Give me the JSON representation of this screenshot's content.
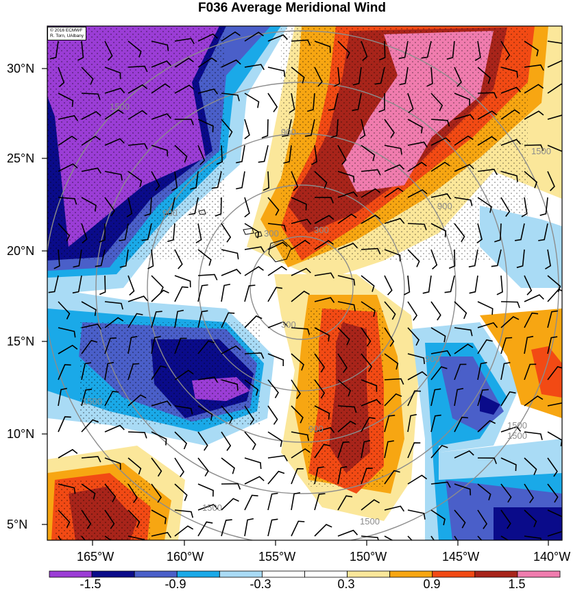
{
  "title": "F036 Average Meridional Wind",
  "credit": {
    "line1": "© 2016 ECMWF",
    "line2": "R. Torn, UAlbany"
  },
  "lat_labels": [
    "30°N",
    "25°N",
    "20°N",
    "15°N",
    "10°N",
    "5°N"
  ],
  "lon_labels": [
    "165°W",
    "160°W",
    "155°W",
    "150°W",
    "145°W",
    "140°W"
  ],
  "colorbar": {
    "colors": [
      "#9b3dd6",
      "#0a0b8a",
      "#4a5fc9",
      "#1aa9e8",
      "#a9dbf5",
      "#ffffff",
      "#ffffff",
      "#fbe79a",
      "#f7a612",
      "#f24a14",
      "#a8241a",
      "#f07cae"
    ],
    "labels": [
      "-1.5",
      "-0.9",
      "-0.3",
      "0.3",
      "0.9",
      "1.5"
    ]
  },
  "contour_labels": [
    "1500",
    "900",
    "300",
    "900",
    "1500",
    "900",
    "300",
    "1500",
    "1500",
    "900",
    "1500",
    "300",
    "900",
    "1500",
    "1500"
  ],
  "colors": {
    "contour": "#8c8c8c",
    "barb": "#000000"
  }
}
